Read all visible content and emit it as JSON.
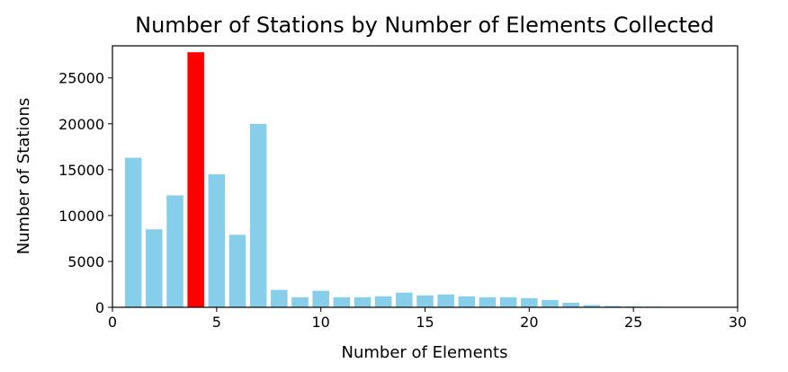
{
  "chart_data": {
    "type": "bar",
    "title": "Number of Stations by Number of Elements Collected",
    "xlabel": "Number of Elements",
    "ylabel": "Number of Stations",
    "xlim": [
      0,
      30
    ],
    "ylim": [
      0,
      28500
    ],
    "xticks": [
      0,
      5,
      10,
      15,
      20,
      25,
      30
    ],
    "yticks": [
      0,
      5000,
      10000,
      15000,
      20000,
      25000
    ],
    "grid": false,
    "legend": "none",
    "bar_color": "#87ceeb",
    "highlight_color": "#ff0000",
    "highlight_x": 4,
    "x": [
      1,
      2,
      3,
      4,
      5,
      6,
      7,
      8,
      9,
      10,
      11,
      12,
      13,
      14,
      15,
      16,
      17,
      18,
      19,
      20,
      21,
      22,
      23,
      24,
      25,
      26,
      27,
      28,
      29
    ],
    "values": [
      16300,
      8500,
      12200,
      27800,
      14500,
      7900,
      20000,
      1900,
      1100,
      1800,
      1100,
      1100,
      1200,
      1600,
      1300,
      1400,
      1200,
      1100,
      1100,
      1000,
      800,
      500,
      250,
      150,
      100,
      80,
      50,
      30,
      20
    ]
  }
}
